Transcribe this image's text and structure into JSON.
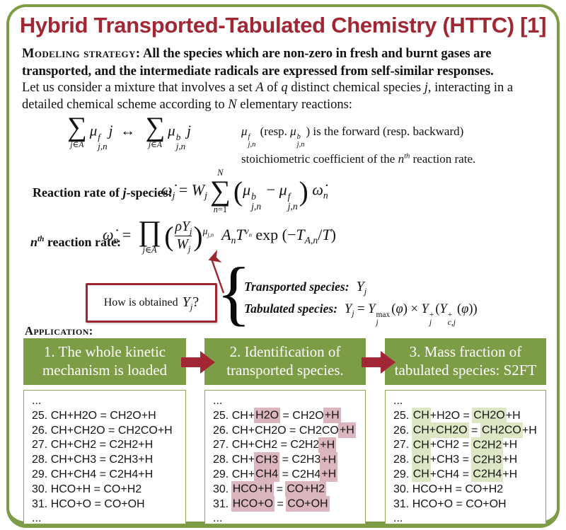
{
  "theme": {
    "green": "#7d9c46",
    "red": "#a12734",
    "dark_red": "#9e2633",
    "white_box_border": "#8ba558",
    "pink_hl": "#dcb6bf",
    "green_hl": "#dde7c5"
  },
  "slide": {
    "title": "Hybrid Transported-Tabulated Chemistry (HTTC) [1]"
  },
  "strategy": {
    "label": "Modeling strategy:",
    "text": " All the species which are non-zero in fresh and burnt gases are transported, and the intermediate radicals are expressed from self-similar responses."
  },
  "intro": {
    "tokens": [
      "Let us consider a mixture that involves a set ",
      {
        "i": "A"
      },
      " of ",
      {
        "i": "q"
      },
      " distinct chemical species ",
      {
        "i": "j"
      },
      ", interacting in a detailed chemical scheme according to ",
      {
        "i": "N"
      },
      " elementary reactions:"
    ]
  },
  "stoich": {
    "formula": [
      {
        "op": "∑",
        "lo": [
          {
            "i": "j"
          },
          "∈",
          {
            "i": "A"
          }
        ]
      },
      {
        "i": "μ"
      },
      {
        "ss": {
          "sup": [
            {
              "i": "f"
            }
          ],
          "sub": [
            {
              "i": "j,n"
            }
          ]
        }
      },
      {
        "i": "j"
      },
      " ↔ ",
      {
        "op": "∑",
        "lo": [
          {
            "i": "j"
          },
          "∈",
          {
            "i": "A"
          }
        ]
      },
      {
        "i": "μ"
      },
      {
        "ss": {
          "sup": [
            {
              "i": "b"
            }
          ],
          "sub": [
            {
              "i": "j,n"
            }
          ]
        }
      },
      {
        "i": "j"
      }
    ],
    "note1": [
      {
        "i": "μ"
      },
      {
        "ss": {
          "sup": [
            {
              "i": "f"
            }
          ],
          "sub": [
            {
              "i": "j,n"
            }
          ]
        }
      },
      " (resp. ",
      {
        "i": "μ"
      },
      {
        "ss": {
          "sup": [
            {
              "i": "b"
            }
          ],
          "sub": [
            {
              "i": "j,n"
            }
          ]
        }
      },
      ") is the forward (resp. backward)"
    ],
    "note2": [
      "stoichiometric coefficient of the ",
      {
        "i": "n"
      },
      {
        "sup": [
          {
            "i": "th"
          }
        ]
      },
      " reaction rate."
    ]
  },
  "jrate": {
    "label": [
      {
        "b": "Reaction rate of "
      },
      {
        "bi": "j"
      },
      {
        "b": "-species:"
      }
    ],
    "formula": [
      {
        "i": "ω̇"
      },
      {
        "sub": [
          {
            "i": "j"
          }
        ]
      },
      " = ",
      {
        "i": "W"
      },
      {
        "sub": [
          {
            "i": "j"
          }
        ]
      },
      {
        "op": "∑",
        "hi": [
          {
            "i": "N"
          }
        ],
        "lo": [
          {
            "i": "n"
          },
          "=1"
        ]
      },
      {
        "big": "("
      },
      {
        "i": "μ"
      },
      {
        "ss": {
          "sup": [
            {
              "i": "b"
            }
          ],
          "sub": [
            {
              "i": "j,n"
            }
          ]
        }
      },
      " − ",
      {
        "i": "μ"
      },
      {
        "ss": {
          "sup": [
            {
              "i": "f"
            }
          ],
          "sub": [
            {
              "i": "j,n"
            }
          ]
        }
      },
      {
        "big": ")"
      },
      " ",
      {
        "i": "ω̇"
      },
      {
        "sub": [
          {
            "i": "n"
          }
        ]
      }
    ]
  },
  "nrate": {
    "label": [
      {
        "bi": "n"
      },
      {
        "sup": [
          {
            "bi": "th"
          }
        ]
      },
      {
        "b": " reaction rate:"
      }
    ],
    "formula": [
      {
        "i": "ω̇"
      },
      {
        "sub": [
          {
            "i": "n"
          }
        ]
      },
      " = ",
      {
        "op": "∏",
        "lo": [
          {
            "i": "j"
          },
          "∈",
          {
            "i": "A"
          }
        ]
      },
      {
        "big": "("
      },
      {
        "frac": {
          "n": [
            {
              "i": "ρY"
            },
            {
              "sub": [
                {
                  "i": "j"
                }
              ]
            }
          ],
          "d": [
            {
              "i": "W"
            },
            {
              "sub": [
                {
                  "i": "j"
                }
              ]
            }
          ]
        }
      },
      {
        "big": ")"
      },
      {
        "sup": [
          {
            "i": "μ"
          },
          {
            "sub": [
              {
                "i": "j,n"
              }
            ]
          }
        ]
      },
      " ",
      {
        "i": "A"
      },
      {
        "sub": [
          {
            "i": "n"
          }
        ]
      },
      {
        "i": "T"
      },
      {
        "sup": [
          {
            "i": "ν"
          },
          {
            "sub": [
              {
                "i": "n"
              }
            ]
          }
        ]
      },
      " exp (−",
      {
        "i": "T"
      },
      {
        "sub": [
          {
            "i": "A,n"
          }
        ]
      },
      "/",
      {
        "i": "T"
      },
      ")"
    ]
  },
  "obtained": {
    "tokens": [
      "How is obtained ",
      {
        "m": [
          {
            "i": "Y"
          },
          {
            "sub": [
              {
                "i": "j"
              }
            ]
          },
          "?"
        ]
      }
    ]
  },
  "species": {
    "brace": "{",
    "transported_label": "Transported species:",
    "transported_math": [
      {
        "i": "Y"
      },
      {
        "sub": [
          {
            "i": "j"
          }
        ]
      }
    ],
    "tabulated_label": "Tabulated species:",
    "tabulated_math": [
      {
        "i": "Y"
      },
      {
        "sub": [
          {
            "i": "j"
          }
        ]
      },
      " = ",
      {
        "i": "Y"
      },
      {
        "ss": {
          "sup": [
            "max"
          ],
          "sub": [
            {
              "i": "j"
            }
          ]
        }
      },
      "(",
      {
        "i": "φ"
      },
      ") × ",
      {
        "i": "Y"
      },
      {
        "ss": {
          "sup": [
            "+"
          ],
          "sub": [
            {
              "i": "j"
            }
          ]
        }
      },
      "(",
      {
        "i": "Y"
      },
      {
        "ss": {
          "sup": [
            "+"
          ],
          "sub": [
            {
              "i": "c,j"
            }
          ]
        }
      },
      "(",
      {
        "i": "φ"
      },
      "))"
    ]
  },
  "application_label": "Application:",
  "steps": [
    {
      "title": "1. The whole kinetic mechanism is loaded"
    },
    {
      "title": "2. Identification of transported species."
    },
    {
      "title": "3. Mass fraction of tabulated species: S2FT"
    }
  ],
  "columns": [
    {
      "name": "full-mechanism",
      "hl": null,
      "lines": [
        [
          [
            "..."
          ]
        ],
        [
          [
            "25. CH+H2O = CH2O+H"
          ]
        ],
        [
          [
            "26. CH+CH2O = CH2CO+H"
          ]
        ],
        [
          [
            "27. CH+CH2 = C2H2+H"
          ]
        ],
        [
          [
            "28. CH+CH3 = C2H3+H"
          ]
        ],
        [
          [
            "29. CH+CH4 = C2H4+H"
          ]
        ],
        [
          [
            "30. HCO+H = CO+H2"
          ]
        ],
        [
          [
            "31. HCO+O = CO+OH"
          ]
        ],
        [
          [
            "..."
          ]
        ]
      ]
    },
    {
      "name": "transported-species",
      "hl": "pink_hl",
      "lines": [
        [
          [
            "..."
          ]
        ],
        [
          [
            "25. CH+"
          ],
          [
            "H2O",
            1
          ],
          [
            " = CH2O"
          ],
          [
            "+H",
            1
          ]
        ],
        [
          [
            "26. CH+CH2O = CH2CO"
          ],
          [
            "+H",
            1
          ]
        ],
        [
          [
            "27. CH+CH2 = C2H2"
          ],
          [
            "+H",
            1
          ]
        ],
        [
          [
            "28. CH+"
          ],
          [
            "CH3",
            1
          ],
          [
            " = C2H3"
          ],
          [
            "+H",
            1
          ]
        ],
        [
          [
            "29. CH+"
          ],
          [
            "CH4",
            1
          ],
          [
            " = C2H4"
          ],
          [
            "+H",
            1
          ]
        ],
        [
          [
            "30. "
          ],
          [
            "HCO+H",
            1
          ],
          [
            " = "
          ],
          [
            "CO+H2",
            1
          ]
        ],
        [
          [
            "31. "
          ],
          [
            "HCO+O",
            1
          ],
          [
            " = "
          ],
          [
            "CO+OH",
            1
          ]
        ],
        [
          [
            "..."
          ]
        ]
      ]
    },
    {
      "name": "tabulated-species",
      "hl": "green_hl",
      "lines": [
        [
          [
            "..."
          ]
        ],
        [
          [
            "25. "
          ],
          [
            "CH",
            1
          ],
          [
            "+H2O = "
          ],
          [
            "CH2O",
            1
          ],
          [
            "+H"
          ]
        ],
        [
          [
            "26. "
          ],
          [
            "CH+CH2O",
            1
          ],
          [
            " = "
          ],
          [
            "CH2CO",
            1
          ],
          [
            "+H"
          ]
        ],
        [
          [
            "27. "
          ],
          [
            "CH",
            1
          ],
          [
            "+CH2 = "
          ],
          [
            "C2H2",
            1
          ],
          [
            "+H"
          ]
        ],
        [
          [
            "28. "
          ],
          [
            "CH",
            1
          ],
          [
            "+CH3 = "
          ],
          [
            "C2H3",
            1
          ],
          [
            "+H"
          ]
        ],
        [
          [
            "29. "
          ],
          [
            "CH",
            1
          ],
          [
            "+CH4 = "
          ],
          [
            "C2H4",
            1
          ],
          [
            "+H"
          ]
        ],
        [
          [
            "30. HCO+H = CO+H2"
          ]
        ],
        [
          [
            "31. HCO+O = CO+OH"
          ]
        ],
        [
          [
            "..."
          ]
        ]
      ]
    }
  ]
}
